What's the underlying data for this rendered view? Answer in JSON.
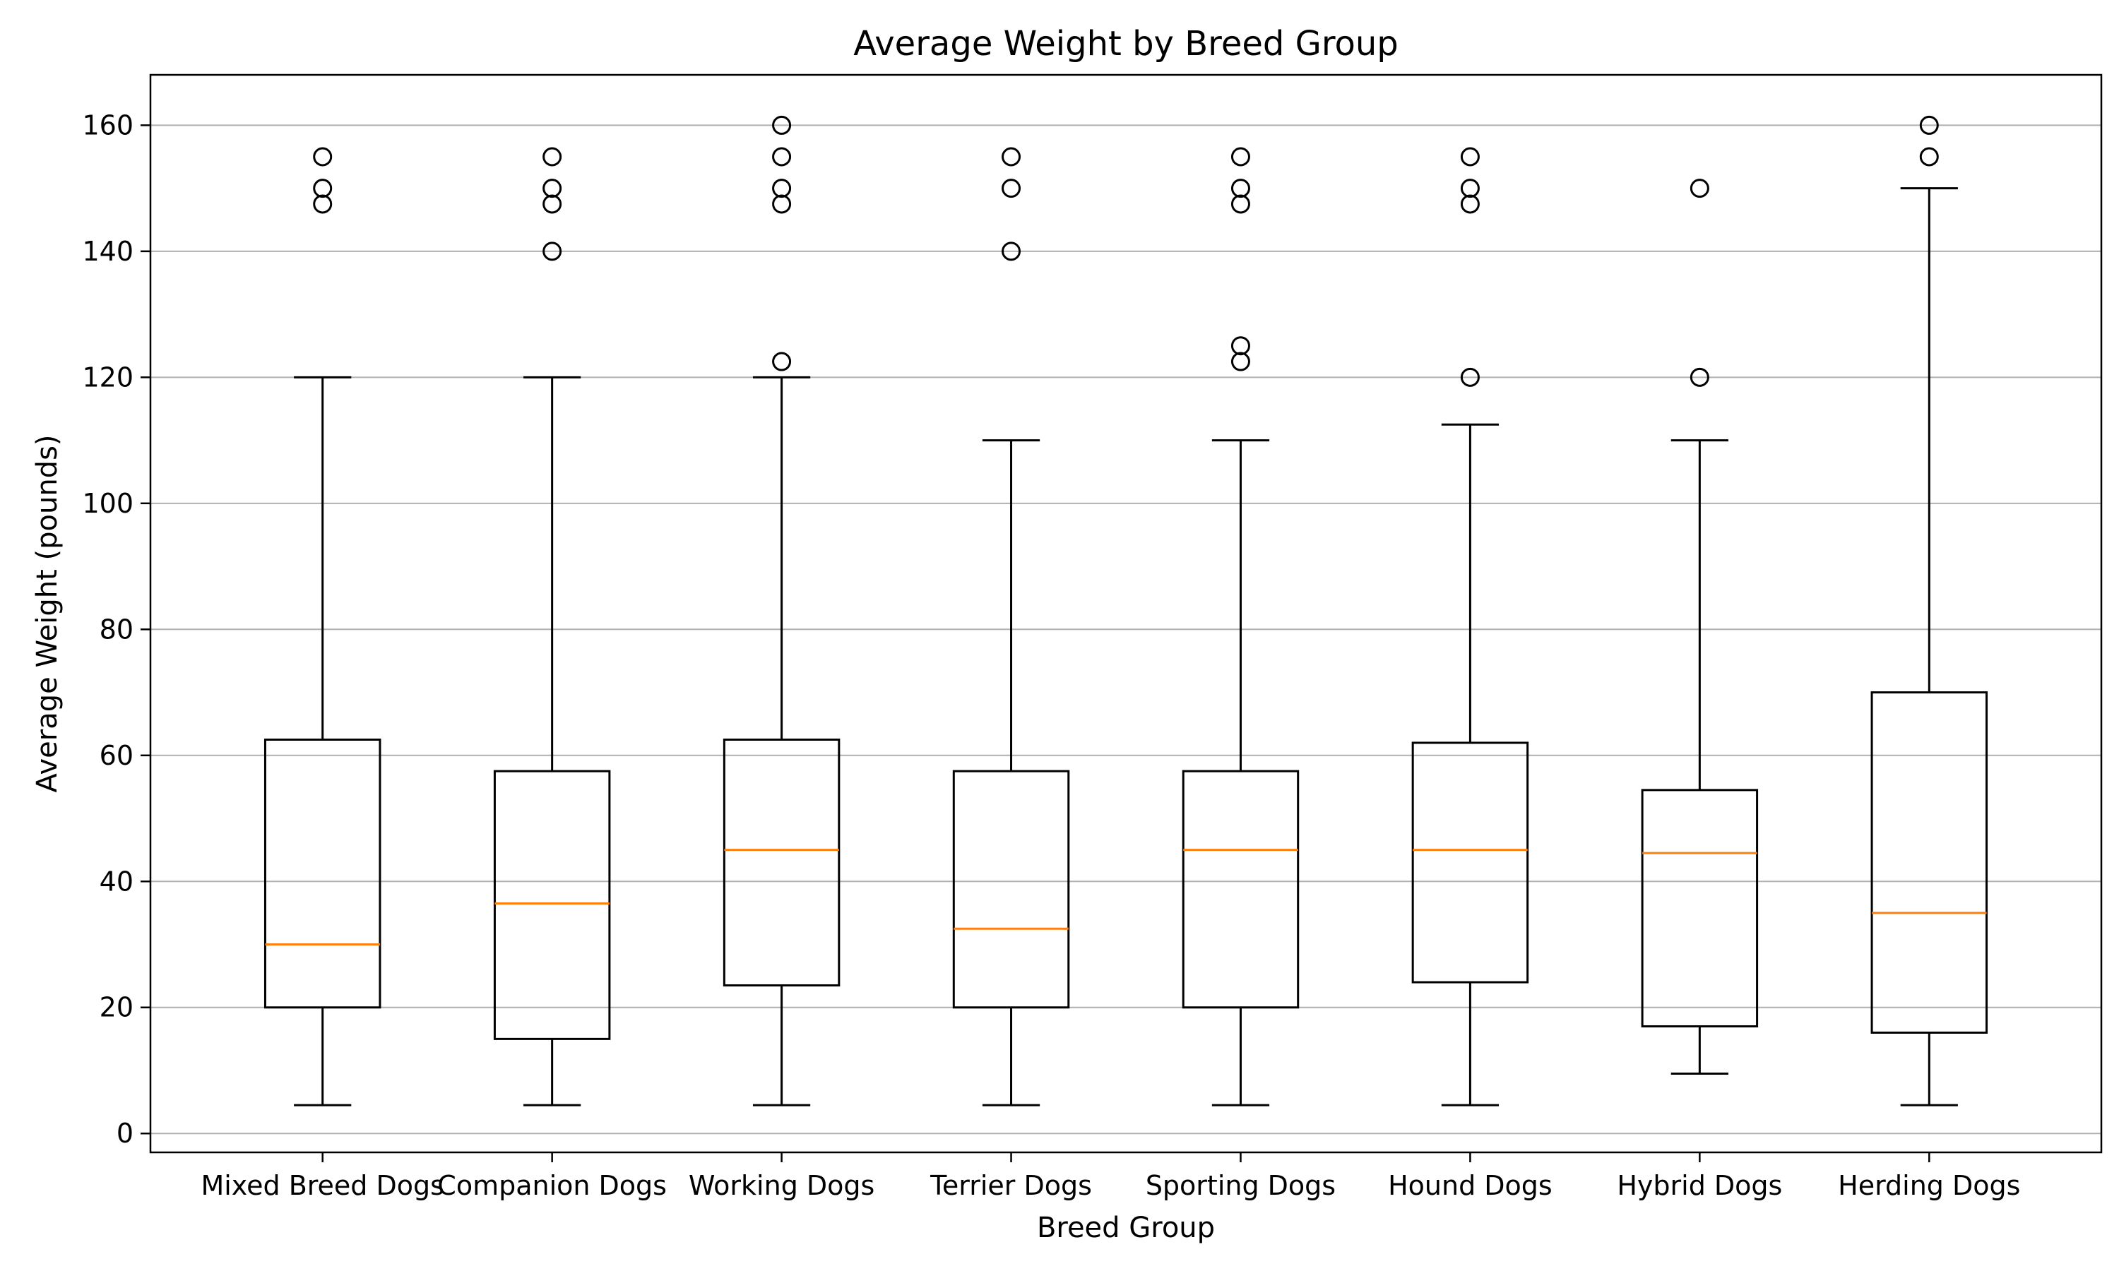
{
  "chart_data": {
    "type": "box",
    "title": "Average Weight by Breed Group",
    "xlabel": "Breed Group",
    "ylabel": "Average Weight (pounds)",
    "ylim": [
      -3,
      168
    ],
    "yticks": [
      0,
      20,
      40,
      60,
      80,
      100,
      120,
      140,
      160
    ],
    "grid": "y",
    "colors": {
      "box": "#000000",
      "median": "#ff7f0e",
      "grid": "#b0b0b0"
    },
    "categories": [
      "Mixed Breed Dogs",
      "Companion Dogs",
      "Working Dogs",
      "Terrier Dogs",
      "Sporting Dogs",
      "Hound Dogs",
      "Hybrid Dogs",
      "Herding Dogs"
    ],
    "boxes": [
      {
        "whisker_low": 4.5,
        "q1": 20,
        "median": 30,
        "q3": 62.5,
        "whisker_high": 120,
        "outliers": [
          147.5,
          150,
          155
        ]
      },
      {
        "whisker_low": 4.5,
        "q1": 15,
        "median": 36.5,
        "q3": 57.5,
        "whisker_high": 120,
        "outliers": [
          140,
          147.5,
          150,
          155
        ]
      },
      {
        "whisker_low": 4.5,
        "q1": 23.5,
        "median": 45,
        "q3": 62.5,
        "whisker_high": 120,
        "outliers": [
          122.5,
          147.5,
          150,
          155,
          160
        ]
      },
      {
        "whisker_low": 4.5,
        "q1": 20,
        "median": 32.5,
        "q3": 57.5,
        "whisker_high": 110,
        "outliers": [
          140,
          150,
          155
        ]
      },
      {
        "whisker_low": 4.5,
        "q1": 20,
        "median": 45,
        "q3": 57.5,
        "whisker_high": 110,
        "outliers": [
          122.5,
          125,
          147.5,
          150,
          155
        ]
      },
      {
        "whisker_low": 4.5,
        "q1": 24,
        "median": 45,
        "q3": 62,
        "whisker_high": 112.5,
        "outliers": [
          120,
          147.5,
          150,
          155
        ]
      },
      {
        "whisker_low": 9.5,
        "q1": 17,
        "median": 44.5,
        "q3": 54.5,
        "whisker_high": 110,
        "outliers": [
          120,
          150
        ]
      },
      {
        "whisker_low": 4.5,
        "q1": 16,
        "median": 35,
        "q3": 70,
        "whisker_high": 150,
        "outliers": [
          155,
          160
        ]
      }
    ]
  }
}
